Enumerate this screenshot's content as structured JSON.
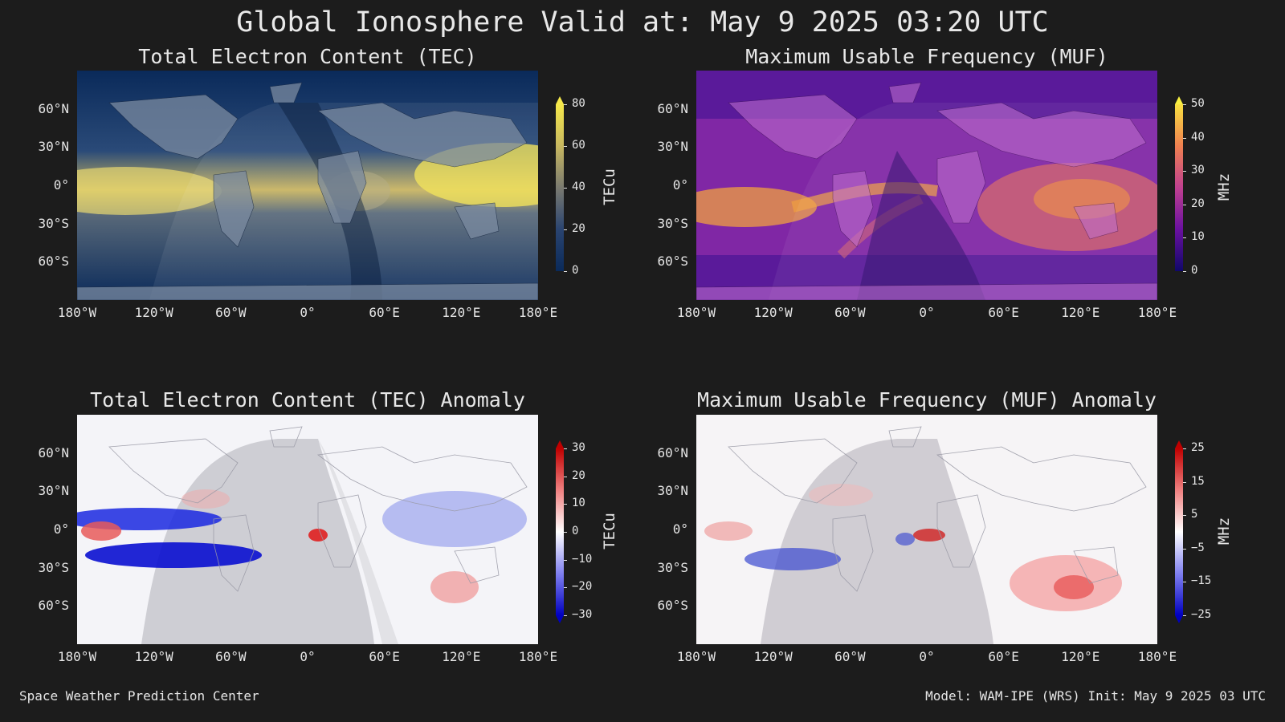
{
  "title": "Global Ionosphere Valid at: May 9 2025 03:20 UTC",
  "panels": {
    "tec": {
      "title": "Total Electron Content (TEC)",
      "unit": "TECu",
      "ticks": [
        "0",
        "20",
        "40",
        "60",
        "80"
      ]
    },
    "muf": {
      "title": "Maximum Usable Frequency (MUF)",
      "unit": "MHz",
      "ticks": [
        "0",
        "10",
        "20",
        "30",
        "40",
        "50"
      ]
    },
    "tec_anom": {
      "title": "Total Electron Content (TEC) Anomaly",
      "unit": "TECu",
      "ticks": [
        "30",
        "20",
        "10",
        "0",
        "−10",
        "−20",
        "−30"
      ]
    },
    "muf_anom": {
      "title": "Maximum Usable Frequency (MUF) Anomaly",
      "unit": "MHz",
      "ticks": [
        "25",
        "15",
        "5",
        "−5",
        "−15",
        "−25"
      ]
    }
  },
  "lat_labels": [
    "60°N",
    "30°N",
    "0°",
    "30°S",
    "60°S"
  ],
  "lon_labels": [
    "180°W",
    "120°W",
    "60°W",
    "0°",
    "60°E",
    "120°E",
    "180°E"
  ],
  "footer": {
    "left": "Space Weather Prediction Center",
    "right": "Model: WAM-IPE (WRS) Init: May 9 2025 03 UTC"
  },
  "colors": {
    "background": "#1c1c1c",
    "tec_low": "#0a2a5a",
    "tec_high": "#f5e84a",
    "muf_low": "#1a0a6e",
    "muf_mid": "#b030b0",
    "muf_high": "#f8e040",
    "anom_neg": "#0000d0",
    "anom_pos": "#d00000"
  }
}
